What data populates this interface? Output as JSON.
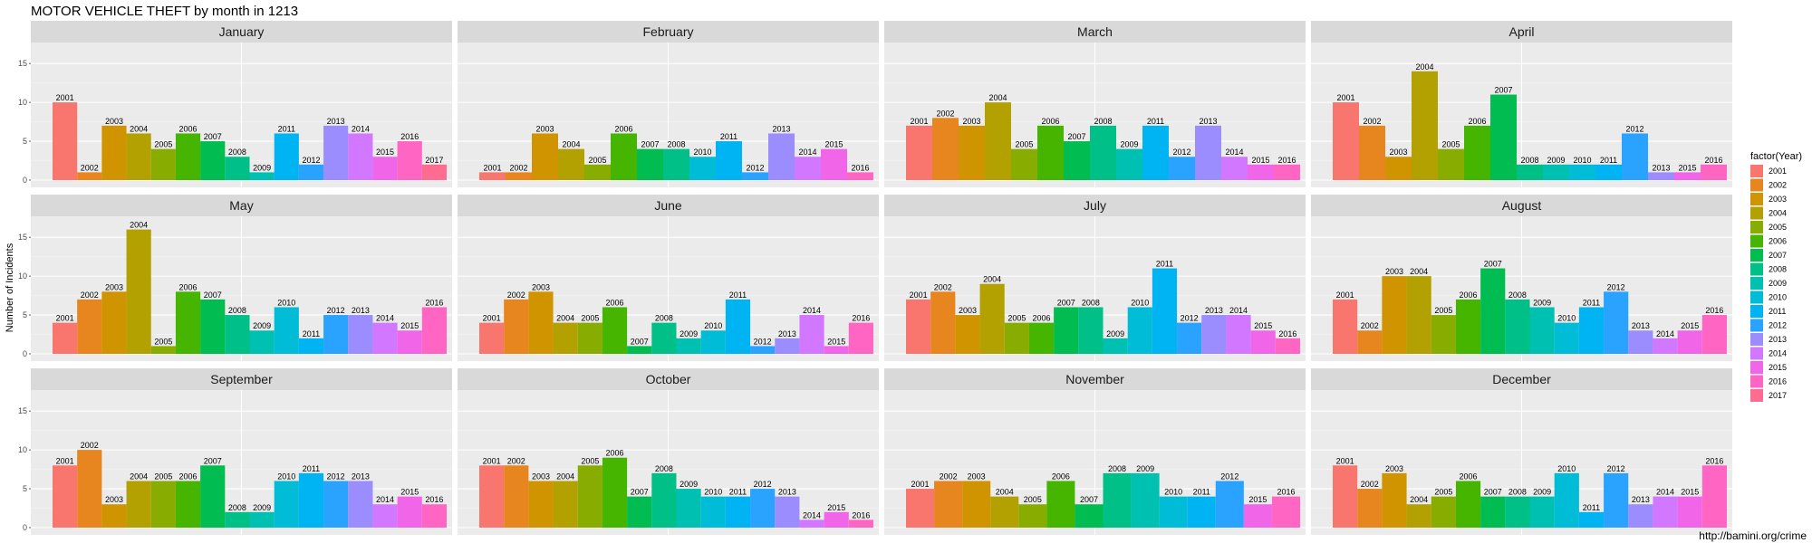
{
  "chart_data": {
    "type": "bar",
    "title": "MOTOR VEHICLE THEFT by month in 1213",
    "ylabel": "Number of Incidents",
    "xlabel": "",
    "ylim": [
      0,
      17
    ],
    "yticks": [
      0,
      5,
      10,
      15
    ],
    "grid": true,
    "legend": {
      "title": "factor(Year)",
      "placement": "right",
      "entries": [
        {
          "label": "2001",
          "color": "#F8766D"
        },
        {
          "label": "2002",
          "color": "#E7851E"
        },
        {
          "label": "2003",
          "color": "#D09400"
        },
        {
          "label": "2004",
          "color": "#B2A100"
        },
        {
          "label": "2005",
          "color": "#89AC00"
        },
        {
          "label": "2006",
          "color": "#45B500"
        },
        {
          "label": "2007",
          "color": "#00BC51"
        },
        {
          "label": "2008",
          "color": "#00C087"
        },
        {
          "label": "2009",
          "color": "#00C0B2"
        },
        {
          "label": "2010",
          "color": "#00BCD6"
        },
        {
          "label": "2011",
          "color": "#00B3F2"
        },
        {
          "label": "2012",
          "color": "#29A3FF"
        },
        {
          "label": "2013",
          "color": "#9C8DFF"
        },
        {
          "label": "2014",
          "color": "#D277FF"
        },
        {
          "label": "2015",
          "color": "#F166E8"
        },
        {
          "label": "2016",
          "color": "#FF65C2"
        },
        {
          "label": "2017",
          "color": "#FF6C91"
        }
      ]
    },
    "caption": "http://bamini.org/crime",
    "facets": [
      {
        "month": "January",
        "bars": [
          {
            "year": "2001",
            "value": 10
          },
          {
            "year": "2002",
            "value": 1
          },
          {
            "year": "2003",
            "value": 7
          },
          {
            "year": "2004",
            "value": 6
          },
          {
            "year": "2005",
            "value": 4
          },
          {
            "year": "2006",
            "value": 6
          },
          {
            "year": "2007",
            "value": 5
          },
          {
            "year": "2008",
            "value": 3
          },
          {
            "year": "2009",
            "value": 1
          },
          {
            "year": "2011",
            "value": 6
          },
          {
            "year": "2012",
            "value": 2
          },
          {
            "year": "2013",
            "value": 7
          },
          {
            "year": "2014",
            "value": 6
          },
          {
            "year": "2015",
            "value": 3
          },
          {
            "year": "2016",
            "value": 5
          },
          {
            "year": "2017",
            "value": 2
          }
        ]
      },
      {
        "month": "February",
        "bars": [
          {
            "year": "2001",
            "value": 1
          },
          {
            "year": "2002",
            "value": 1
          },
          {
            "year": "2003",
            "value": 6
          },
          {
            "year": "2004",
            "value": 4
          },
          {
            "year": "2005",
            "value": 2
          },
          {
            "year": "2006",
            "value": 6
          },
          {
            "year": "2007",
            "value": 4
          },
          {
            "year": "2008",
            "value": 4
          },
          {
            "year": "2010",
            "value": 3
          },
          {
            "year": "2011",
            "value": 5
          },
          {
            "year": "2012",
            "value": 1
          },
          {
            "year": "2013",
            "value": 6
          },
          {
            "year": "2014",
            "value": 3
          },
          {
            "year": "2015",
            "value": 4
          },
          {
            "year": "2016",
            "value": 1
          }
        ]
      },
      {
        "month": "March",
        "bars": [
          {
            "year": "2001",
            "value": 7
          },
          {
            "year": "2002",
            "value": 8
          },
          {
            "year": "2003",
            "value": 7
          },
          {
            "year": "2004",
            "value": 10
          },
          {
            "year": "2005",
            "value": 4
          },
          {
            "year": "2006",
            "value": 7
          },
          {
            "year": "2007",
            "value": 5
          },
          {
            "year": "2008",
            "value": 7
          },
          {
            "year": "2009",
            "value": 4
          },
          {
            "year": "2011",
            "value": 7
          },
          {
            "year": "2012",
            "value": 3
          },
          {
            "year": "2013",
            "value": 7
          },
          {
            "year": "2014",
            "value": 3
          },
          {
            "year": "2015",
            "value": 2
          },
          {
            "year": "2016",
            "value": 2
          }
        ]
      },
      {
        "month": "April",
        "bars": [
          {
            "year": "2001",
            "value": 10
          },
          {
            "year": "2002",
            "value": 7
          },
          {
            "year": "2003",
            "value": 3
          },
          {
            "year": "2004",
            "value": 14
          },
          {
            "year": "2005",
            "value": 4
          },
          {
            "year": "2006",
            "value": 7
          },
          {
            "year": "2007",
            "value": 11
          },
          {
            "year": "2008",
            "value": 2
          },
          {
            "year": "2009",
            "value": 2
          },
          {
            "year": "2010",
            "value": 2
          },
          {
            "year": "2011",
            "value": 2
          },
          {
            "year": "2012",
            "value": 6
          },
          {
            "year": "2013",
            "value": 1
          },
          {
            "year": "2015",
            "value": 1
          },
          {
            "year": "2016",
            "value": 2
          }
        ]
      },
      {
        "month": "May",
        "bars": [
          {
            "year": "2001",
            "value": 4
          },
          {
            "year": "2002",
            "value": 7
          },
          {
            "year": "2003",
            "value": 8
          },
          {
            "year": "2004",
            "value": 16
          },
          {
            "year": "2005",
            "value": 1
          },
          {
            "year": "2006",
            "value": 8
          },
          {
            "year": "2007",
            "value": 7
          },
          {
            "year": "2008",
            "value": 5
          },
          {
            "year": "2009",
            "value": 3
          },
          {
            "year": "2010",
            "value": 6
          },
          {
            "year": "2011",
            "value": 2
          },
          {
            "year": "2012",
            "value": 5
          },
          {
            "year": "2013",
            "value": 5
          },
          {
            "year": "2014",
            "value": 4
          },
          {
            "year": "2015",
            "value": 3
          },
          {
            "year": "2016",
            "value": 6
          }
        ]
      },
      {
        "month": "June",
        "bars": [
          {
            "year": "2001",
            "value": 4
          },
          {
            "year": "2002",
            "value": 7
          },
          {
            "year": "2003",
            "value": 8
          },
          {
            "year": "2004",
            "value": 4
          },
          {
            "year": "2005",
            "value": 4
          },
          {
            "year": "2006",
            "value": 6
          },
          {
            "year": "2007",
            "value": 1
          },
          {
            "year": "2008",
            "value": 4
          },
          {
            "year": "2009",
            "value": 2
          },
          {
            "year": "2010",
            "value": 3
          },
          {
            "year": "2011",
            "value": 7
          },
          {
            "year": "2012",
            "value": 1
          },
          {
            "year": "2013",
            "value": 2
          },
          {
            "year": "2014",
            "value": 5
          },
          {
            "year": "2015",
            "value": 1
          },
          {
            "year": "2016",
            "value": 4
          }
        ]
      },
      {
        "month": "July",
        "bars": [
          {
            "year": "2001",
            "value": 7
          },
          {
            "year": "2002",
            "value": 8
          },
          {
            "year": "2003",
            "value": 5
          },
          {
            "year": "2004",
            "value": 9
          },
          {
            "year": "2005",
            "value": 4
          },
          {
            "year": "2006",
            "value": 4
          },
          {
            "year": "2007",
            "value": 6
          },
          {
            "year": "2008",
            "value": 6
          },
          {
            "year": "2009",
            "value": 2
          },
          {
            "year": "2010",
            "value": 6
          },
          {
            "year": "2011",
            "value": 11
          },
          {
            "year": "2012",
            "value": 4
          },
          {
            "year": "2013",
            "value": 5
          },
          {
            "year": "2014",
            "value": 5
          },
          {
            "year": "2015",
            "value": 3
          },
          {
            "year": "2016",
            "value": 2
          }
        ]
      },
      {
        "month": "August",
        "bars": [
          {
            "year": "2001",
            "value": 7
          },
          {
            "year": "2002",
            "value": 3
          },
          {
            "year": "2003",
            "value": 10
          },
          {
            "year": "2004",
            "value": 10
          },
          {
            "year": "2005",
            "value": 5
          },
          {
            "year": "2006",
            "value": 7
          },
          {
            "year": "2007",
            "value": 11
          },
          {
            "year": "2008",
            "value": 7
          },
          {
            "year": "2009",
            "value": 6
          },
          {
            "year": "2010",
            "value": 4
          },
          {
            "year": "2011",
            "value": 6
          },
          {
            "year": "2012",
            "value": 8
          },
          {
            "year": "2013",
            "value": 3
          },
          {
            "year": "2014",
            "value": 2
          },
          {
            "year": "2015",
            "value": 3
          },
          {
            "year": "2016",
            "value": 5
          }
        ]
      },
      {
        "month": "September",
        "bars": [
          {
            "year": "2001",
            "value": 8
          },
          {
            "year": "2002",
            "value": 10
          },
          {
            "year": "2003",
            "value": 3
          },
          {
            "year": "2004",
            "value": 6
          },
          {
            "year": "2005",
            "value": 6
          },
          {
            "year": "2006",
            "value": 6
          },
          {
            "year": "2007",
            "value": 8
          },
          {
            "year": "2008",
            "value": 2
          },
          {
            "year": "2009",
            "value": 2
          },
          {
            "year": "2010",
            "value": 6
          },
          {
            "year": "2011",
            "value": 7
          },
          {
            "year": "2012",
            "value": 6
          },
          {
            "year": "2013",
            "value": 6
          },
          {
            "year": "2014",
            "value": 3
          },
          {
            "year": "2015",
            "value": 4
          },
          {
            "year": "2016",
            "value": 3
          }
        ]
      },
      {
        "month": "October",
        "bars": [
          {
            "year": "2001",
            "value": 8
          },
          {
            "year": "2002",
            "value": 8
          },
          {
            "year": "2003",
            "value": 6
          },
          {
            "year": "2004",
            "value": 6
          },
          {
            "year": "2005",
            "value": 8
          },
          {
            "year": "2006",
            "value": 9
          },
          {
            "year": "2007",
            "value": 4
          },
          {
            "year": "2008",
            "value": 7
          },
          {
            "year": "2009",
            "value": 5
          },
          {
            "year": "2010",
            "value": 4
          },
          {
            "year": "2011",
            "value": 4
          },
          {
            "year": "2012",
            "value": 5
          },
          {
            "year": "2013",
            "value": 4
          },
          {
            "year": "2014",
            "value": 1
          },
          {
            "year": "2015",
            "value": 2
          },
          {
            "year": "2016",
            "value": 1
          }
        ]
      },
      {
        "month": "November",
        "bars": [
          {
            "year": "2001",
            "value": 5
          },
          {
            "year": "2002",
            "value": 6
          },
          {
            "year": "2003",
            "value": 6
          },
          {
            "year": "2004",
            "value": 4
          },
          {
            "year": "2005",
            "value": 3
          },
          {
            "year": "2006",
            "value": 6
          },
          {
            "year": "2007",
            "value": 3
          },
          {
            "year": "2008",
            "value": 7
          },
          {
            "year": "2009",
            "value": 7
          },
          {
            "year": "2010",
            "value": 4
          },
          {
            "year": "2011",
            "value": 4
          },
          {
            "year": "2012",
            "value": 6
          },
          {
            "year": "2015",
            "value": 3
          },
          {
            "year": "2016",
            "value": 4
          }
        ]
      },
      {
        "month": "December",
        "bars": [
          {
            "year": "2001",
            "value": 8
          },
          {
            "year": "2002",
            "value": 5
          },
          {
            "year": "2003",
            "value": 7
          },
          {
            "year": "2004",
            "value": 3
          },
          {
            "year": "2005",
            "value": 4
          },
          {
            "year": "2006",
            "value": 6
          },
          {
            "year": "2007",
            "value": 4
          },
          {
            "year": "2008",
            "value": 4
          },
          {
            "year": "2009",
            "value": 4
          },
          {
            "year": "2010",
            "value": 7
          },
          {
            "year": "2011",
            "value": 2
          },
          {
            "year": "2012",
            "value": 7
          },
          {
            "year": "2013",
            "value": 3
          },
          {
            "year": "2014",
            "value": 4
          },
          {
            "year": "2015",
            "value": 4
          },
          {
            "year": "2016",
            "value": 8
          }
        ]
      }
    ]
  }
}
